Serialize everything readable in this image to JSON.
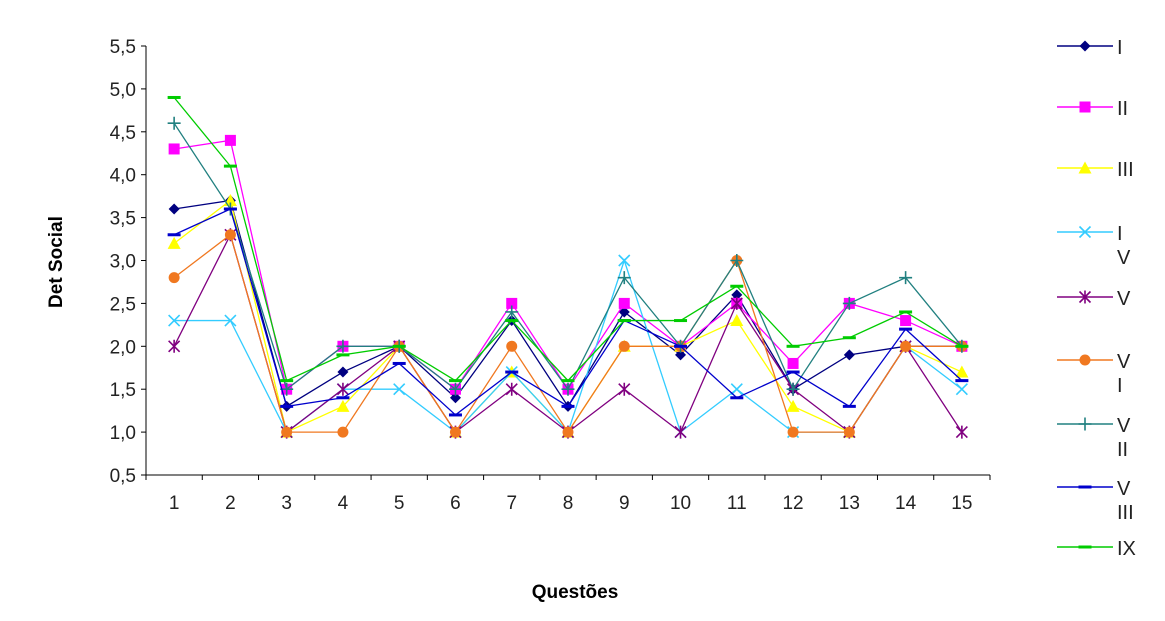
{
  "chart_data": {
    "type": "line",
    "title": "",
    "xlabel": "Questões",
    "ylabel": "Det Social",
    "categories": [
      "1",
      "2",
      "3",
      "4",
      "5",
      "6",
      "7",
      "8",
      "9",
      "10",
      "11",
      "12",
      "13",
      "14",
      "15"
    ],
    "ylim": [
      0.5,
      5.5
    ],
    "yticks": [
      "0,5",
      "1,0",
      "1,5",
      "2,0",
      "2,5",
      "3,0",
      "3,5",
      "4,0",
      "4,5",
      "5,0",
      "5,5"
    ],
    "grid": false,
    "legend_position": "right",
    "series": [
      {
        "name": "I",
        "legend_lines": [
          "I"
        ],
        "color": "#000080",
        "marker": "diamond",
        "values": [
          3.6,
          3.7,
          1.3,
          1.7,
          2.0,
          1.4,
          2.3,
          1.3,
          2.4,
          1.9,
          2.6,
          1.5,
          1.9,
          2.0,
          2.0
        ]
      },
      {
        "name": "II",
        "legend_lines": [
          "II"
        ],
        "color": "#ff00ff",
        "marker": "square",
        "values": [
          4.3,
          4.4,
          1.5,
          2.0,
          2.0,
          1.5,
          2.5,
          1.5,
          2.5,
          2.0,
          2.5,
          1.8,
          2.5,
          2.3,
          2.0
        ]
      },
      {
        "name": "III",
        "legend_lines": [
          "III"
        ],
        "color": "#ffff00",
        "marker": "triangle",
        "values": [
          3.2,
          3.7,
          1.0,
          1.3,
          2.0,
          1.0,
          1.7,
          1.0,
          2.0,
          2.0,
          2.3,
          1.3,
          1.0,
          2.0,
          1.7
        ]
      },
      {
        "name": "IV",
        "legend_lines": [
          "I",
          "V"
        ],
        "color": "#33ccff",
        "marker": "x",
        "values": [
          2.3,
          2.3,
          1.0,
          1.5,
          1.5,
          1.0,
          1.7,
          1.0,
          3.0,
          1.0,
          1.5,
          1.0,
          1.0,
          2.0,
          1.5
        ]
      },
      {
        "name": "V",
        "legend_lines": [
          "V"
        ],
        "color": "#800080",
        "marker": "star",
        "values": [
          2.0,
          3.3,
          1.0,
          1.5,
          2.0,
          1.0,
          1.5,
          1.0,
          1.5,
          1.0,
          2.5,
          1.5,
          1.0,
          2.0,
          1.0
        ]
      },
      {
        "name": "VI",
        "legend_lines": [
          "V",
          "I"
        ],
        "color": "#f07820",
        "marker": "circle",
        "values": [
          2.8,
          3.3,
          1.0,
          1.0,
          2.0,
          1.0,
          2.0,
          1.0,
          2.0,
          2.0,
          3.0,
          1.0,
          1.0,
          2.0,
          2.0
        ]
      },
      {
        "name": "VII",
        "legend_lines": [
          "V",
          "II"
        ],
        "color": "#218080",
        "marker": "plus",
        "values": [
          4.6,
          3.6,
          1.5,
          2.0,
          2.0,
          1.5,
          2.4,
          1.5,
          2.8,
          2.0,
          3.0,
          1.5,
          2.5,
          2.8,
          2.0
        ]
      },
      {
        "name": "VIII",
        "legend_lines": [
          "V",
          "III"
        ],
        "color": "#0000cc",
        "marker": "dash",
        "values": [
          3.3,
          3.6,
          1.3,
          1.4,
          1.8,
          1.2,
          1.7,
          1.3,
          2.3,
          2.0,
          1.4,
          1.7,
          1.3,
          2.2,
          1.6
        ]
      },
      {
        "name": "IX",
        "legend_lines": [
          "IX"
        ],
        "color": "#00cc00",
        "marker": "dash",
        "values": [
          4.9,
          4.1,
          1.6,
          1.9,
          2.0,
          1.6,
          2.3,
          1.6,
          2.3,
          2.3,
          2.7,
          2.0,
          2.1,
          2.4,
          2.0
        ]
      }
    ]
  }
}
